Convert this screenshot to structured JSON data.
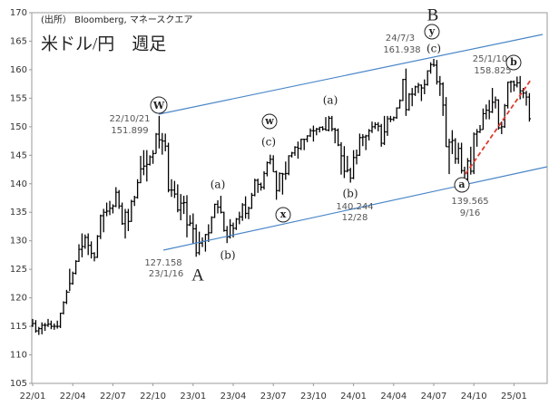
{
  "chart_data": {
    "type": "ohlc",
    "title": "米ドル/円　週足",
    "source": "(出所） Bloomberg, マネースクエア",
    "color": "#000000",
    "ylim": [
      105,
      170
    ],
    "yticks": [
      105,
      110,
      115,
      120,
      125,
      130,
      135,
      140,
      145,
      150,
      155,
      160,
      165,
      170
    ],
    "categories": [
      "22/01",
      null,
      null,
      null,
      null,
      null,
      null,
      null,
      null,
      null,
      null,
      null,
      null,
      "22/04",
      null,
      null,
      null,
      null,
      null,
      null,
      null,
      null,
      null,
      null,
      null,
      null,
      "22/07",
      null,
      null,
      null,
      null,
      null,
      null,
      null,
      null,
      null,
      null,
      null,
      null,
      "22/10",
      null,
      null,
      null,
      null,
      null,
      null,
      null,
      null,
      null,
      null,
      null,
      null,
      "23/01",
      null,
      null,
      null,
      null,
      null,
      null,
      null,
      null,
      null,
      null,
      null,
      null,
      "23/04",
      null,
      null,
      null,
      null,
      null,
      null,
      null,
      null,
      null,
      null,
      null,
      null,
      "23/07",
      null,
      null,
      null,
      null,
      null,
      null,
      null,
      null,
      null,
      null,
      null,
      null,
      "23/10",
      null,
      null,
      null,
      null,
      null,
      null,
      null,
      null,
      null,
      null,
      null,
      null,
      "24/01",
      null,
      null,
      null,
      null,
      null,
      null,
      null,
      null,
      null,
      null,
      null,
      null,
      "24/04",
      null,
      null,
      null,
      null,
      null,
      null,
      null,
      null,
      null,
      null,
      null,
      null,
      "24/07",
      null,
      null,
      null,
      null,
      null,
      null,
      null,
      null,
      null,
      null,
      null,
      null,
      "24/10",
      null,
      null,
      null,
      null,
      null,
      null,
      null,
      null,
      null,
      null,
      null,
      null,
      "25/01",
      null,
      null,
      null,
      null,
      null
    ],
    "bars": [
      [
        115.1,
        116.3,
        114.9,
        115.5
      ],
      [
        115.5,
        116.1,
        113.9,
        114.2
      ],
      [
        114.2,
        114.9,
        113.5,
        114.6
      ],
      [
        114.6,
        115.7,
        113.6,
        115.2
      ],
      [
        115.2,
        115.6,
        114.2,
        115.2
      ],
      [
        115.2,
        116.3,
        114.9,
        115.4
      ],
      [
        115.4,
        116.0,
        114.5,
        115.0
      ],
      [
        115.0,
        115.5,
        114.4,
        115.0
      ],
      [
        115.0,
        116.0,
        114.6,
        115.0
      ],
      [
        115.0,
        117.4,
        114.7,
        117.3
      ],
      [
        117.3,
        119.4,
        117.1,
        119.2
      ],
      [
        119.2,
        121.4,
        118.9,
        121.0
      ],
      [
        121.0,
        125.1,
        121.2,
        122.5
      ],
      [
        122.5,
        124.6,
        122.3,
        124.3
      ],
      [
        124.3,
        126.6,
        124.1,
        126.4
      ],
      [
        126.4,
        129.4,
        126.3,
        128.5
      ],
      [
        128.5,
        131.3,
        127.1,
        129.0
      ],
      [
        129.0,
        131.1,
        128.6,
        130.6
      ],
      [
        130.6,
        131.3,
        127.5,
        129.2
      ],
      [
        129.2,
        129.9,
        126.9,
        127.8
      ],
      [
        127.8,
        128.0,
        126.4,
        127.1
      ],
      [
        127.1,
        131.0,
        127.0,
        130.8
      ],
      [
        130.8,
        134.6,
        130.3,
        134.4
      ],
      [
        134.4,
        135.6,
        131.5,
        135.0
      ],
      [
        135.0,
        136.7,
        134.3,
        135.2
      ],
      [
        135.2,
        137.0,
        134.5,
        135.7
      ],
      [
        135.7,
        136.4,
        134.8,
        136.1
      ],
      [
        136.1,
        139.4,
        135.9,
        138.5
      ],
      [
        138.5,
        138.9,
        135.6,
        136.1
      ],
      [
        136.1,
        136.7,
        132.8,
        133.0
      ],
      [
        133.0,
        135.6,
        130.4,
        135.0
      ],
      [
        135.0,
        135.6,
        131.7,
        133.4
      ],
      [
        133.4,
        137.2,
        133.3,
        136.9
      ],
      [
        136.9,
        137.9,
        136.1,
        137.6
      ],
      [
        137.6,
        140.8,
        137.4,
        140.2
      ],
      [
        140.2,
        144.9,
        140.1,
        142.6
      ],
      [
        142.6,
        145.9,
        141.5,
        143.1
      ],
      [
        143.1,
        145.9,
        140.4,
        143.4
      ],
      [
        143.4,
        145.0,
        143.2,
        144.7
      ],
      [
        144.7,
        145.9,
        143.5,
        145.3
      ],
      [
        145.3,
        148.9,
        145.3,
        148.7
      ],
      [
        148.7,
        151.9,
        146.2,
        147.7
      ],
      [
        147.7,
        148.9,
        145.1,
        147.5
      ],
      [
        147.5,
        148.8,
        145.7,
        146.6
      ],
      [
        146.6,
        147.2,
        138.5,
        138.9
      ],
      [
        138.9,
        140.8,
        137.7,
        138.9
      ],
      [
        138.9,
        140.5,
        137.5,
        138.2
      ],
      [
        138.2,
        139.9,
        135.0,
        135.4
      ],
      [
        135.4,
        138.2,
        133.6,
        136.6
      ],
      [
        136.6,
        137.9,
        134.7,
        136.7
      ],
      [
        136.7,
        138.0,
        130.6,
        132.8
      ],
      [
        132.8,
        134.5,
        132.6,
        133.1
      ],
      [
        133.1,
        134.8,
        129.5,
        132.1
      ],
      [
        132.1,
        132.9,
        127.2,
        127.9
      ],
      [
        127.9,
        131.6,
        127.5,
        129.6
      ],
      [
        129.6,
        130.6,
        128.9,
        129.9
      ],
      [
        129.9,
        131.2,
        128.1,
        131.1
      ],
      [
        131.1,
        132.9,
        129.8,
        131.4
      ],
      [
        131.4,
        134.3,
        131.3,
        134.1
      ],
      [
        134.1,
        136.5,
        134.0,
        136.4
      ],
      [
        136.4,
        137.1,
        134.8,
        135.9
      ],
      [
        135.9,
        137.9,
        134.8,
        135.0
      ],
      [
        135.0,
        135.1,
        131.6,
        131.8
      ],
      [
        131.8,
        132.6,
        129.6,
        130.7
      ],
      [
        130.7,
        133.8,
        130.4,
        132.7
      ],
      [
        132.7,
        133.2,
        130.6,
        132.2
      ],
      [
        132.2,
        134.0,
        131.9,
        133.8
      ],
      [
        133.8,
        135.1,
        132.9,
        134.2
      ],
      [
        134.2,
        136.6,
        133.5,
        136.3
      ],
      [
        136.3,
        137.8,
        133.9,
        134.8
      ],
      [
        134.8,
        136.0,
        133.8,
        135.7
      ],
      [
        135.7,
        138.4,
        135.6,
        138.0
      ],
      [
        138.0,
        140.9,
        137.8,
        140.6
      ],
      [
        140.6,
        140.9,
        138.4,
        139.9
      ],
      [
        139.9,
        140.2,
        138.8,
        139.4
      ],
      [
        139.4,
        142.2,
        139.0,
        141.8
      ],
      [
        141.8,
        143.9,
        141.3,
        143.7
      ],
      [
        143.7,
        145.1,
        143.4,
        144.3
      ],
      [
        144.3,
        145.0,
        142.1,
        142.1
      ],
      [
        142.1,
        142.3,
        137.2,
        138.8
      ],
      [
        138.8,
        142.0,
        138.6,
        141.8
      ],
      [
        141.8,
        141.9,
        138.1,
        141.7
      ],
      [
        141.7,
        143.9,
        140.7,
        141.8
      ],
      [
        141.8,
        145.0,
        141.5,
        144.9
      ],
      [
        144.9,
        145.6,
        144.6,
        145.4
      ],
      [
        145.4,
        146.6,
        144.9,
        146.4
      ],
      [
        146.4,
        147.4,
        144.4,
        146.2
      ],
      [
        146.2,
        147.9,
        145.9,
        147.8
      ],
      [
        147.8,
        147.9,
        145.9,
        147.8
      ],
      [
        147.8,
        148.5,
        147.3,
        148.4
      ],
      [
        148.4,
        149.7,
        148.2,
        149.3
      ],
      [
        149.3,
        150.2,
        147.4,
        149.3
      ],
      [
        149.3,
        149.8,
        148.5,
        149.6
      ],
      [
        149.6,
        150.0,
        149.0,
        149.9
      ],
      [
        149.9,
        150.1,
        149.3,
        149.6
      ],
      [
        149.6,
        151.7,
        149.3,
        149.4
      ],
      [
        149.4,
        151.9,
        149.2,
        151.5
      ],
      [
        151.5,
        151.9,
        149.2,
        149.6
      ],
      [
        149.6,
        149.8,
        147.1,
        149.4
      ],
      [
        149.4,
        149.7,
        146.6,
        146.8
      ],
      [
        146.8,
        147.3,
        141.6,
        144.9
      ],
      [
        144.9,
        146.6,
        141.0,
        142.2
      ],
      [
        142.2,
        144.9,
        142.0,
        142.4
      ],
      [
        142.4,
        142.8,
        140.2,
        141.0
      ],
      [
        141.0,
        145.9,
        140.8,
        144.6
      ],
      [
        144.6,
        146.0,
        143.4,
        145.0
      ],
      [
        145.0,
        148.8,
        144.9,
        148.1
      ],
      [
        148.1,
        148.7,
        146.6,
        148.2
      ],
      [
        148.2,
        148.6,
        145.9,
        148.4
      ],
      [
        148.4,
        149.6,
        147.6,
        149.3
      ],
      [
        149.3,
        150.9,
        148.9,
        150.0
      ],
      [
        150.0,
        150.8,
        149.6,
        150.4
      ],
      [
        150.4,
        150.8,
        149.2,
        150.1
      ],
      [
        150.1,
        150.5,
        146.5,
        147.1
      ],
      [
        147.1,
        151.9,
        146.8,
        149.1
      ],
      [
        149.1,
        151.9,
        148.4,
        151.4
      ],
      [
        151.4,
        151.9,
        150.8,
        151.3
      ],
      [
        151.3,
        151.8,
        151.0,
        151.6
      ],
      [
        151.6,
        153.4,
        151.4,
        153.3
      ],
      [
        153.3,
        154.8,
        153.2,
        154.6
      ],
      [
        154.6,
        158.4,
        154.5,
        158.3
      ],
      [
        158.3,
        160.2,
        151.9,
        153.0
      ],
      [
        153.0,
        155.9,
        152.8,
        155.7
      ],
      [
        155.7,
        156.8,
        153.6,
        155.7
      ],
      [
        155.7,
        157.2,
        155.4,
        157.0
      ],
      [
        157.0,
        157.7,
        155.9,
        157.3
      ],
      [
        157.3,
        157.4,
        154.5,
        156.8
      ],
      [
        156.8,
        158.3,
        155.7,
        157.4
      ],
      [
        157.4,
        159.9,
        157.2,
        159.8
      ],
      [
        159.8,
        161.3,
        159.3,
        160.9
      ],
      [
        160.9,
        161.9,
        160.5,
        160.8
      ],
      [
        160.8,
        161.7,
        157.4,
        157.9
      ],
      [
        157.9,
        158.9,
        155.4,
        157.5
      ],
      [
        157.5,
        157.8,
        151.9,
        153.8
      ],
      [
        153.8,
        155.2,
        146.5,
        146.5
      ],
      [
        146.5,
        147.9,
        141.7,
        147.3
      ],
      [
        147.3,
        149.4,
        145.2,
        147.6
      ],
      [
        147.6,
        148.0,
        143.5,
        144.4
      ],
      [
        144.4,
        147.2,
        143.5,
        146.2
      ],
      [
        146.2,
        147.2,
        141.8,
        142.3
      ],
      [
        142.3,
        143.0,
        139.6,
        140.8
      ],
      [
        140.8,
        144.5,
        140.3,
        144.0
      ],
      [
        144.0,
        146.5,
        141.6,
        142.2
      ],
      [
        142.2,
        149.0,
        141.7,
        148.7
      ],
      [
        148.7,
        149.6,
        146.5,
        149.1
      ],
      [
        149.1,
        150.3,
        148.9,
        149.5
      ],
      [
        149.5,
        153.2,
        149.5,
        152.3
      ],
      [
        152.3,
        153.9,
        151.3,
        152.9
      ],
      [
        152.9,
        154.7,
        151.3,
        152.6
      ],
      [
        152.6,
        156.8,
        152.4,
        154.3
      ],
      [
        154.3,
        155.3,
        153.2,
        154.7
      ],
      [
        154.7,
        154.8,
        149.5,
        149.8
      ],
      [
        149.8,
        150.9,
        148.7,
        150.0
      ],
      [
        150.0,
        154.0,
        149.8,
        153.7
      ],
      [
        153.7,
        157.9,
        153.2,
        157.8
      ],
      [
        157.8,
        158.1,
        156.0,
        157.9
      ],
      [
        157.9,
        158.1,
        156.2,
        157.3
      ],
      [
        157.3,
        158.8,
        156.9,
        157.7
      ],
      [
        157.7,
        158.9,
        154.8,
        156.3
      ],
      [
        156.3,
        156.8,
        155.0,
        155.9
      ],
      [
        155.9,
        156.3,
        153.7,
        155.2
      ],
      [
        155.2,
        155.9,
        150.9,
        151.4
      ]
    ],
    "annotations": [
      "W",
      "22/10/21",
      "151.899",
      "(a)",
      "(b)",
      "127.158",
      "23/1/16",
      "A",
      "w",
      "(c)",
      "x",
      "(a)",
      "(b)",
      "140.244",
      "12/28",
      "B",
      "y",
      "(c)",
      "24/7/3",
      "161.938",
      "a",
      "139.565",
      "9/16",
      "25/1/10",
      "158.825",
      "b"
    ]
  }
}
